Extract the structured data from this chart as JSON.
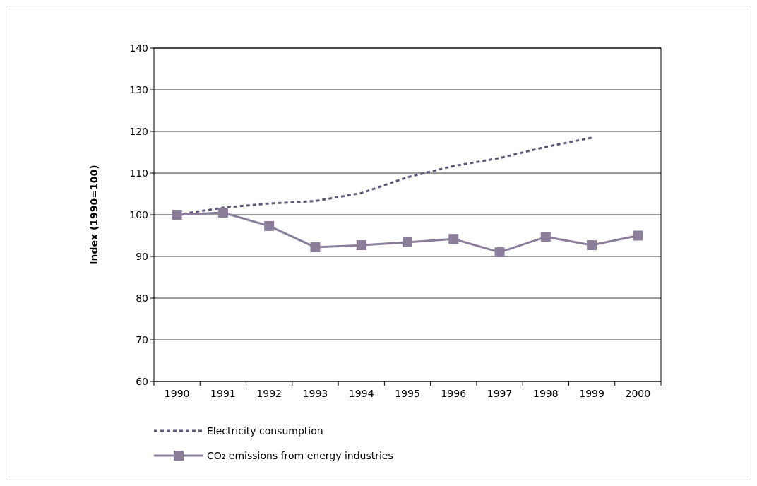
{
  "chart_data": {
    "type": "line",
    "ylabel": "Index (1990=100)",
    "categories": [
      "1990",
      "1991",
      "1992",
      "1993",
      "1994",
      "1995",
      "1996",
      "1997",
      "1998",
      "1999",
      "2000"
    ],
    "series": [
      {
        "name": "Electricity consumption",
        "color": "#5e5878",
        "line_style": "dashed",
        "marker": "none",
        "values": [
          100,
          101.7,
          102.7,
          103.3,
          105.2,
          109,
          111.7,
          113.6,
          116.3,
          118.5,
          null
        ]
      },
      {
        "name": "CO₂ emissions from energy industries",
        "color": "#8a7e9a",
        "line_style": "solid",
        "marker": "square",
        "values": [
          100,
          100.5,
          97.3,
          92.2,
          92.7,
          93.4,
          94.2,
          91,
          94.7,
          92.7,
          95
        ]
      }
    ],
    "ylim": [
      60,
      140
    ],
    "yticks": [
      60,
      70,
      80,
      90,
      100,
      110,
      120,
      130,
      140
    ],
    "grid": "y",
    "legend": "bottom left"
  }
}
